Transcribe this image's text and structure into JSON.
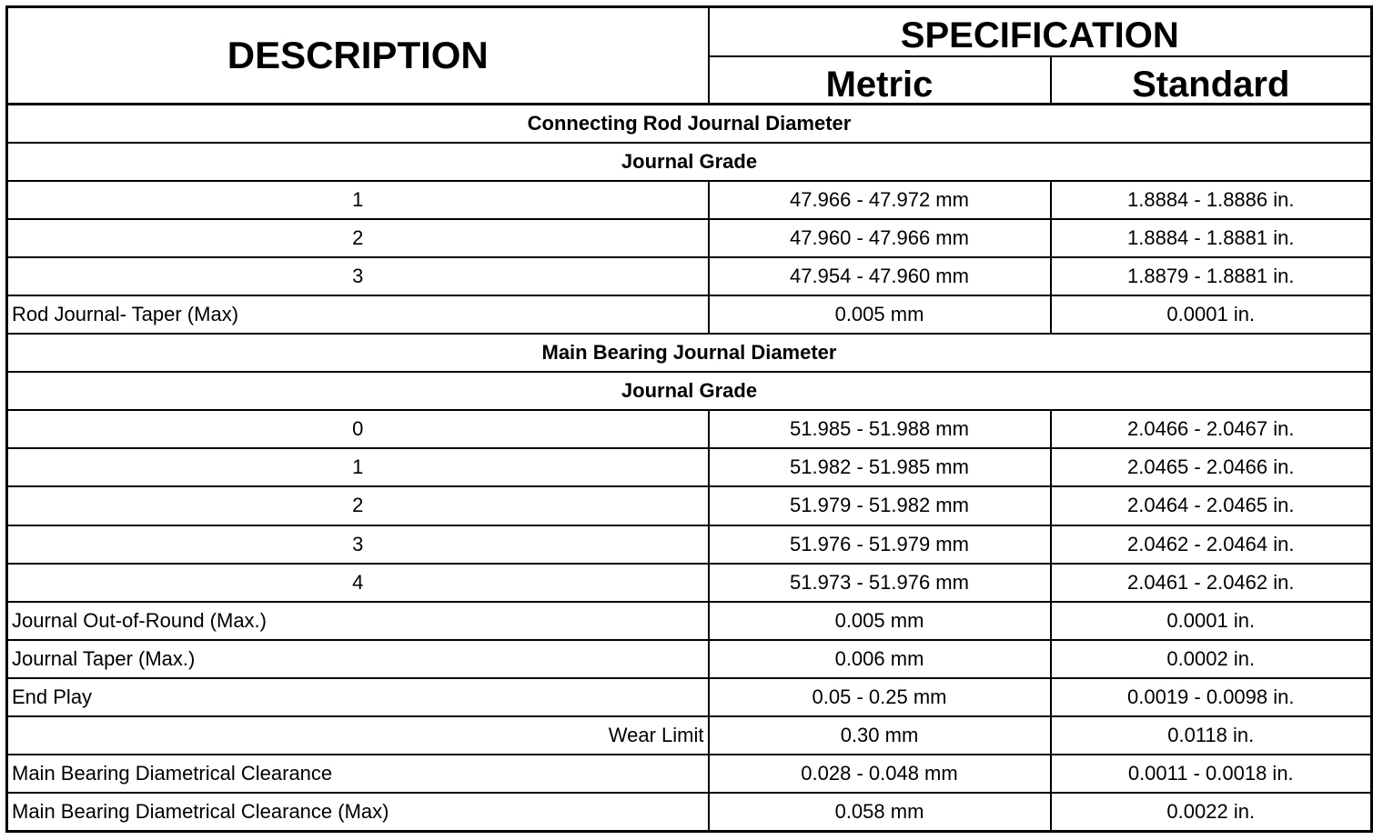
{
  "header": {
    "description": "DESCRIPTION",
    "specification": "SPECIFICATION",
    "metric": "Metric",
    "standard": "Standard"
  },
  "rows": [
    {
      "type": "section",
      "label": "Connecting Rod Journal Diameter"
    },
    {
      "type": "section",
      "label": "Journal Grade"
    },
    {
      "type": "data",
      "align": "center",
      "description": "1",
      "metric": "47.966 - 47.972 mm",
      "standard": "1.8884 - 1.8886 in."
    },
    {
      "type": "data",
      "align": "center",
      "description": "2",
      "metric": "47.960 - 47.966 mm",
      "standard": "1.8884 - 1.8881 in."
    },
    {
      "type": "data",
      "align": "center",
      "description": "3",
      "metric": "47.954 - 47.960 mm",
      "standard": "1.8879 - 1.8881 in."
    },
    {
      "type": "data",
      "align": "left",
      "description": "Rod Journal- Taper (Max)",
      "metric": "0.005 mm",
      "standard": "0.0001 in."
    },
    {
      "type": "section",
      "label": "Main Bearing Journal Diameter"
    },
    {
      "type": "section",
      "label": "Journal Grade"
    },
    {
      "type": "data",
      "align": "center",
      "description": "0",
      "metric": "51.985 - 51.988 mm",
      "standard": "2.0466 - 2.0467 in."
    },
    {
      "type": "data",
      "align": "center",
      "description": "1",
      "metric": "51.982 - 51.985 mm",
      "standard": "2.0465 - 2.0466 in."
    },
    {
      "type": "data",
      "align": "center",
      "description": "2",
      "metric": "51.979 - 51.982 mm",
      "standard": "2.0464 - 2.0465 in."
    },
    {
      "type": "data",
      "align": "center",
      "description": "3",
      "metric": "51.976 - 51.979 mm",
      "standard": "2.0462 - 2.0464 in."
    },
    {
      "type": "data",
      "align": "center",
      "description": "4",
      "metric": "51.973 - 51.976 mm",
      "standard": "2.0461 - 2.0462 in."
    },
    {
      "type": "data",
      "align": "left",
      "description": "Journal Out-of-Round (Max.)",
      "metric": "0.005 mm",
      "standard": "0.0001 in."
    },
    {
      "type": "data",
      "align": "left",
      "description": "Journal Taper (Max.)",
      "metric": "0.006 mm",
      "standard": "0.0002 in."
    },
    {
      "type": "data",
      "align": "left",
      "description": "End Play",
      "metric": "0.05 - 0.25 mm",
      "standard": "0.0019 - 0.0098 in."
    },
    {
      "type": "data",
      "align": "right",
      "description": "Wear Limit",
      "metric": "0.30 mm",
      "standard": "0.0118 in."
    },
    {
      "type": "data",
      "align": "left",
      "description": "Main Bearing Diametrical Clearance",
      "metric": "0.028 - 0.048 mm",
      "standard": "0.0011 - 0.0018 in."
    },
    {
      "type": "data",
      "align": "left",
      "description": "Main Bearing Diametrical Clearance (Max)",
      "metric": "0.058 mm",
      "standard": "0.0022 in."
    }
  ]
}
